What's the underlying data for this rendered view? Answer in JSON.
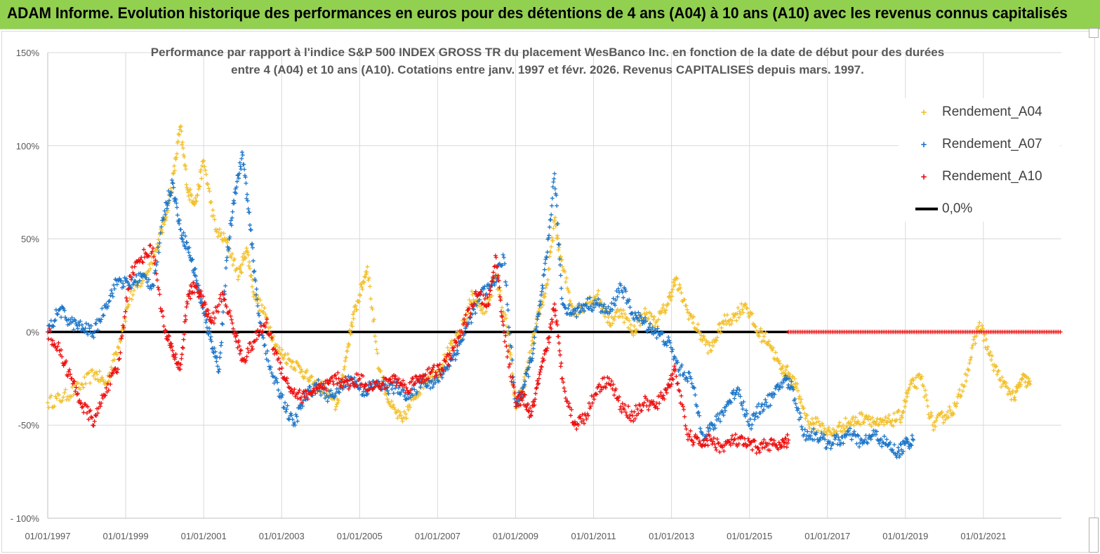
{
  "header": {
    "title": "ADAM Informe. Evolution historique des performances en euros pour des détentions de 4 ans (A04) à 10 ans (A10) avec les revenus connus capitalisés"
  },
  "colors": {
    "banner": "#92d050",
    "A04": "#f2c12e",
    "A07": "#1f77c9",
    "A10": "#ee1010",
    "zero_line": "#000000"
  },
  "chart_data": {
    "type": "scatter",
    "title_line1": "Performance par rapport à l'indice S&P 500 INDEX GROSS TR  du placement WesBanco Inc. en fonction de la date de début pour des durées",
    "title_line2": "entre 4 (A04) et 10 ans (A10). Cotations entre janv. 1997 et févr. 2026. Revenus CAPITALISES depuis mars. 1997.",
    "xlabel": "",
    "ylabel": "",
    "xlim": [
      1997.0,
      2023.0
    ],
    "ylim": [
      -100,
      150
    ],
    "y_ticks": [
      150,
      100,
      50,
      0,
      -50,
      -100
    ],
    "y_tick_labels": [
      "150%",
      "100%",
      "50%",
      "0%",
      "-50%",
      "- 100%"
    ],
    "x_ticks": [
      1997,
      1999,
      2001,
      2003,
      2005,
      2007,
      2009,
      2011,
      2013,
      2015,
      2017,
      2019,
      2021
    ],
    "x_tick_labels": [
      "01/01/1997",
      "01/01/1999",
      "01/01/2001",
      "01/01/2003",
      "01/01/2005",
      "01/01/2007",
      "01/01/2009",
      "01/01/2011",
      "01/01/2013",
      "01/01/2015",
      "01/01/2017",
      "01/01/2019",
      "01/01/2021"
    ],
    "grid": true,
    "legend_position": "top-right",
    "marker": "+",
    "series": [
      {
        "name": "Rendement_A04",
        "x": [
          1997.0,
          1997.4,
          1997.8,
          1998.2,
          1998.5,
          1998.8,
          1999.1,
          1999.5,
          1999.8,
          2000.0,
          2000.2,
          2000.4,
          2000.6,
          2000.8,
          2001.0,
          2001.3,
          2001.6,
          2001.9,
          2002.1,
          2002.3,
          2002.6,
          2002.9,
          2003.2,
          2003.5,
          2003.8,
          2004.1,
          2004.4,
          2004.6,
          2004.8,
          2005.0,
          2005.2,
          2005.5,
          2005.8,
          2006.1,
          2006.4,
          2006.7,
          2007.0,
          2007.3,
          2007.6,
          2007.9,
          2008.2,
          2008.5,
          2008.8,
          2009.0,
          2009.2,
          2009.4,
          2009.6,
          2009.8,
          2010.0,
          2010.2,
          2010.5,
          2010.8,
          2011.1,
          2011.4,
          2011.7,
          2012.0,
          2012.3,
          2012.6,
          2012.9,
          2013.1,
          2013.4,
          2013.7,
          2014.0,
          2014.3,
          2014.6,
          2014.9,
          2015.2,
          2015.5,
          2015.8,
          2016.0,
          2016.2,
          2016.5,
          2016.8,
          2017.1,
          2017.4,
          2017.7,
          2018.0,
          2018.3,
          2018.6,
          2018.9,
          2019.1,
          2019.4,
          2019.7,
          2020.0,
          2020.3,
          2020.6,
          2020.9,
          2021.2,
          2021.5,
          2021.8,
          2022.0,
          2022.2
        ],
        "y": [
          -38,
          -35,
          -30,
          -22,
          -28,
          -8,
          18,
          30,
          45,
          60,
          80,
          110,
          75,
          70,
          92,
          55,
          48,
          30,
          45,
          20,
          8,
          -10,
          -15,
          -20,
          -28,
          -30,
          -40,
          -20,
          5,
          20,
          35,
          -20,
          -40,
          -48,
          -35,
          -25,
          -22,
          -10,
          0,
          20,
          10,
          30,
          0,
          -40,
          -30,
          -10,
          10,
          25,
          60,
          35,
          10,
          15,
          20,
          5,
          12,
          0,
          10,
          5,
          15,
          28,
          12,
          0,
          -10,
          5,
          8,
          15,
          0,
          -5,
          -20,
          -22,
          -30,
          -48,
          -50,
          -55,
          -50,
          -48,
          -45,
          -50,
          -48,
          -45,
          -30,
          -25,
          -50,
          -45,
          -40,
          -20,
          5,
          -15,
          -28,
          -35,
          -25,
          -28
        ]
      },
      {
        "name": "Rendement_A07",
        "x": [
          1997.0,
          1997.3,
          1997.6,
          1997.9,
          1998.2,
          1998.5,
          1998.8,
          1999.1,
          1999.4,
          1999.7,
          2000.0,
          2000.2,
          2000.4,
          2000.6,
          2000.8,
          2001.0,
          2001.2,
          2001.4,
          2001.6,
          2001.8,
          2002.0,
          2002.2,
          2002.4,
          2002.7,
          2003.0,
          2003.3,
          2003.6,
          2003.9,
          2004.2,
          2004.5,
          2004.8,
          2005.1,
          2005.4,
          2005.7,
          2006.0,
          2006.3,
          2006.6,
          2006.9,
          2007.2,
          2007.5,
          2007.8,
          2008.1,
          2008.4,
          2008.7,
          2009.0,
          2009.2,
          2009.4,
          2009.6,
          2009.8,
          2010.0,
          2010.2,
          2010.5,
          2010.8,
          2011.1,
          2011.4,
          2011.7,
          2012.0,
          2012.3,
          2012.6,
          2012.9,
          2013.2,
          2013.5,
          2013.8,
          2014.1,
          2014.4,
          2014.7,
          2015.0,
          2015.3,
          2015.6,
          2015.9,
          2016.1,
          2016.4,
          2016.7,
          2017.0,
          2017.3,
          2017.6,
          2017.9,
          2018.2,
          2018.5,
          2018.8,
          2019.0,
          2019.2
        ],
        "y": [
          0,
          12,
          5,
          2,
          0,
          15,
          28,
          25,
          30,
          25,
          65,
          80,
          55,
          45,
          30,
          10,
          -5,
          -20,
          40,
          75,
          95,
          55,
          10,
          -20,
          -35,
          -50,
          -35,
          -28,
          -35,
          -30,
          -25,
          -32,
          -28,
          -30,
          -30,
          -35,
          -25,
          -28,
          -20,
          -10,
          5,
          20,
          25,
          40,
          -40,
          -30,
          -15,
          10,
          40,
          85,
          15,
          10,
          15,
          15,
          10,
          25,
          10,
          5,
          0,
          -5,
          -20,
          -25,
          -55,
          -50,
          -40,
          -30,
          -50,
          -40,
          -35,
          -25,
          -30,
          -55,
          -55,
          -60,
          -58,
          -55,
          -60,
          -55,
          -60,
          -65,
          -60,
          -58
        ]
      },
      {
        "name": "Rendement_A10",
        "x": [
          1997.0,
          1997.3,
          1997.6,
          1997.9,
          1998.2,
          1998.5,
          1998.8,
          1999.1,
          1999.4,
          1999.7,
          2000.0,
          2000.2,
          2000.4,
          2000.6,
          2000.8,
          2001.0,
          2001.2,
          2001.5,
          2001.8,
          2002.0,
          2002.3,
          2002.6,
          2002.9,
          2003.2,
          2003.5,
          2003.8,
          2004.1,
          2004.4,
          2004.7,
          2005.0,
          2005.3,
          2005.6,
          2005.9,
          2006.2,
          2006.5,
          2006.8,
          2007.1,
          2007.4,
          2007.7,
          2008.0,
          2008.3,
          2008.5,
          2008.7,
          2009.0,
          2009.2,
          2009.4,
          2009.6,
          2009.8,
          2010.0,
          2010.2,
          2010.5,
          2010.8,
          2011.1,
          2011.4,
          2011.7,
          2012.0,
          2012.3,
          2012.6,
          2012.9,
          2013.1,
          2013.4,
          2013.7,
          2014.0,
          2014.3,
          2014.6,
          2014.9,
          2015.2,
          2015.5,
          2015.8,
          2016.0
        ],
        "y": [
          0,
          -10,
          -25,
          -40,
          -48,
          -30,
          -20,
          30,
          40,
          45,
          0,
          -10,
          -20,
          20,
          25,
          15,
          5,
          20,
          0,
          -15,
          -5,
          5,
          -15,
          -30,
          -35,
          -32,
          -30,
          -25,
          -28,
          -25,
          -30,
          -28,
          -25,
          -30,
          -25,
          -22,
          -20,
          -10,
          5,
          20,
          15,
          40,
          0,
          -38,
          -35,
          -45,
          -25,
          -10,
          15,
          -25,
          -50,
          -45,
          -30,
          -25,
          -40,
          -45,
          -38,
          -40,
          -30,
          -20,
          -55,
          -60,
          -58,
          -62,
          -58,
          -60,
          -62,
          -60,
          -62,
          -58
        ]
      },
      {
        "name": "0,0%",
        "kind": "line",
        "x": [
          1997.0,
          2016.0
        ],
        "y": [
          0,
          0
        ]
      }
    ],
    "a10_flat_segment": {
      "x_start": 2016.0,
      "x_end": 2023.0,
      "y": 0
    },
    "legend": [
      "Rendement_A04",
      "Rendement_A07",
      "Rendement_A10",
      "0,0%"
    ]
  }
}
